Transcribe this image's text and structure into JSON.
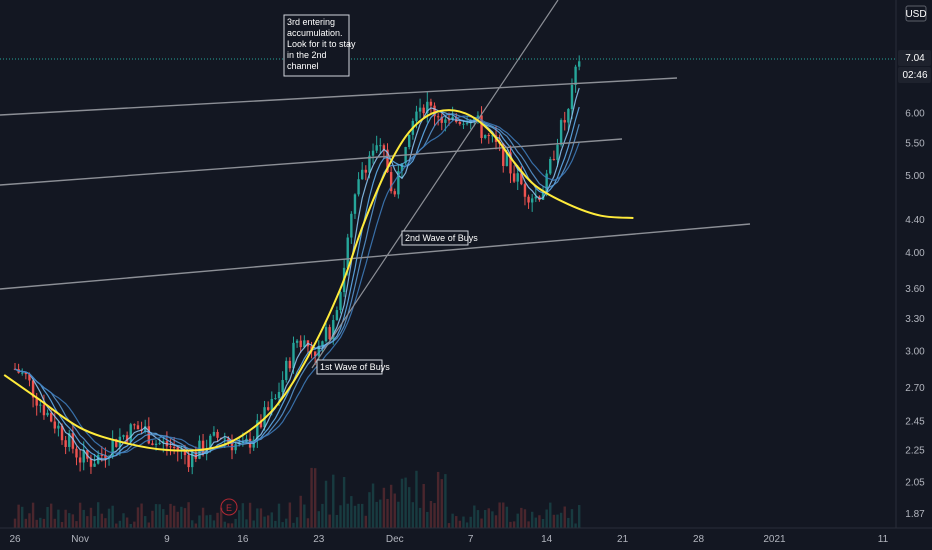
{
  "chart_data": {
    "type": "candlestick",
    "title": "",
    "currency": "USD",
    "last_price": "7.04",
    "countdown": "02:46",
    "y_scale": "log",
    "ylim": [
      1.8,
      8.6
    ],
    "y_ticks": [
      "6.00",
      "5.50",
      "5.00",
      "4.40",
      "4.00",
      "3.60",
      "3.30",
      "3.00",
      "2.70",
      "2.45",
      "2.25",
      "2.05",
      "1.87"
    ],
    "x_ticks": [
      "26",
      "Nov",
      "9",
      "16",
      "23",
      "Dec",
      "7",
      "14",
      "21",
      "28",
      "2021",
      "11"
    ],
    "x_tick_day_index": [
      0,
      6,
      14,
      21,
      28,
      35,
      42,
      49,
      56,
      63,
      70,
      80
    ],
    "grid": false,
    "close_series_by_day": {
      "day": [
        0,
        1,
        2,
        3,
        4,
        5,
        6,
        7,
        8,
        9,
        10,
        11,
        12,
        13,
        14,
        15,
        16,
        17,
        18,
        19,
        20,
        21,
        22,
        23,
        24,
        25,
        26,
        27,
        28,
        29,
        30,
        31,
        32,
        33,
        34,
        35,
        36,
        37,
        38,
        39,
        40,
        41,
        42,
        43,
        44,
        45,
        46,
        47,
        48,
        49,
        50,
        51,
        52
      ],
      "close": [
        2.85,
        2.78,
        2.62,
        2.5,
        2.4,
        2.3,
        2.2,
        2.18,
        2.22,
        2.3,
        2.35,
        2.4,
        2.38,
        2.3,
        2.28,
        2.25,
        2.2,
        2.25,
        2.3,
        2.35,
        2.3,
        2.25,
        2.35,
        2.48,
        2.6,
        2.85,
        3.1,
        3.05,
        3.0,
        3.2,
        3.6,
        4.4,
        5.1,
        5.4,
        5.3,
        4.7,
        5.6,
        6.2,
        6.1,
        6.0,
        5.8,
        5.9,
        6.0,
        5.7,
        5.5,
        5.3,
        5.0,
        4.8,
        4.7,
        4.9,
        5.6,
        6.0,
        7.04
      ]
    },
    "yellow_curve_by_day": {
      "day": [
        -1,
        2,
        6,
        10,
        14,
        18,
        21,
        24,
        27,
        30,
        32,
        34,
        36,
        38,
        40,
        42,
        44,
        46,
        48,
        51,
        54,
        57
      ],
      "value": [
        2.8,
        2.62,
        2.4,
        2.3,
        2.25,
        2.26,
        2.35,
        2.55,
        2.95,
        3.6,
        4.3,
        5.0,
        5.6,
        5.95,
        6.05,
        5.95,
        5.65,
        5.2,
        4.85,
        4.6,
        4.45,
        4.42
      ]
    },
    "volume_marker": "E",
    "annotations": [
      {
        "lines": [
          "3rd entering",
          "accumulation.",
          "Look for it to stay",
          "in the 2nd",
          "channel"
        ]
      },
      {
        "lines": [
          "2nd Wave of Buys"
        ]
      },
      {
        "lines": [
          "1st Wave of Buys"
        ]
      }
    ]
  }
}
